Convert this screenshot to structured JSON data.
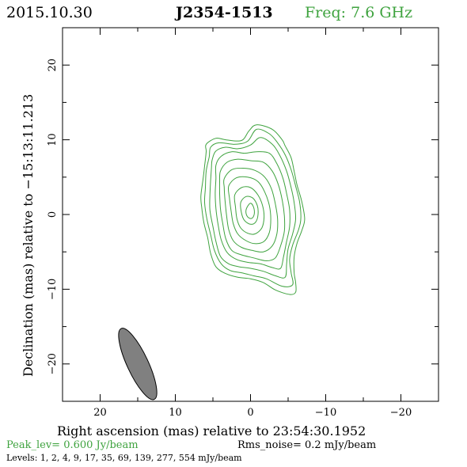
{
  "header": {
    "date": "2015.10.30",
    "source": "J2354-1513",
    "freq": "Freq: 7.6 GHz"
  },
  "colors": {
    "contour": "#3fa33f",
    "beam": "#808080",
    "frame": "#000000",
    "green_text": "#3fa33f"
  },
  "chart_data": {
    "type": "contour",
    "xlabel": "Right ascension (mas) relative to 23:54:30.1952",
    "ylabel": "Declination (mas) relative to −15:13:11.213",
    "xlim": [
      25,
      -25
    ],
    "ylim": [
      -25,
      25
    ],
    "xticks": [
      20,
      10,
      0,
      -10,
      -20
    ],
    "xtick_labels": [
      "20",
      "10",
      "0",
      "−10",
      "−20"
    ],
    "yticks": [
      20,
      10,
      0,
      -10,
      -20
    ],
    "ytick_labels": [
      "20",
      "10",
      "0",
      "−10",
      "−20"
    ],
    "peak_label": "Peak_lev=  0.600 Jy/beam",
    "rms_label": "Rms_noise=  0.2 mJy/beam",
    "levels_label": "Levels:   1,   2,   4,   9,  17,  35,  69, 139, 277, 554 mJy/beam",
    "levels_mJy": [
      1,
      2,
      4,
      9,
      17,
      35,
      69,
      139,
      277,
      554
    ],
    "beam": {
      "x": 15.0,
      "y": -20.0,
      "major_mas": 10.4,
      "minor_mas": 2.8,
      "pa_deg": -25
    },
    "contours": [
      [
        [
          5.9,
          8.4
        ],
        [
          5.9,
          9.4
        ],
        [
          4.6,
          10.2
        ],
        [
          3.3,
          10.0
        ],
        [
          1.2,
          9.9
        ],
        [
          0.2,
          11.2
        ],
        [
          -0.8,
          12.0
        ],
        [
          -2.9,
          11.4
        ],
        [
          -4.2,
          10.0
        ],
        [
          -4.6,
          9.2
        ],
        [
          -5.4,
          7.6
        ],
        [
          -5.8,
          5.8
        ],
        [
          -6.2,
          3.9
        ],
        [
          -6.8,
          1.8
        ],
        [
          -7.2,
          -0.6
        ],
        [
          -6.8,
          -2.2
        ],
        [
          -6.2,
          -3.8
        ],
        [
          -5.8,
          -5.7
        ],
        [
          -5.8,
          -7.8
        ],
        [
          -6.0,
          -9.1
        ],
        [
          -6.0,
          -10.4
        ],
        [
          -5.2,
          -10.7
        ],
        [
          -3.3,
          -10.1
        ],
        [
          -1.7,
          -9.1
        ],
        [
          0.0,
          -8.6
        ],
        [
          1.7,
          -8.4
        ],
        [
          3.3,
          -7.9
        ],
        [
          4.6,
          -7.0
        ],
        [
          5.3,
          -5.2
        ],
        [
          5.7,
          -3.1
        ],
        [
          6.2,
          -1.1
        ],
        [
          6.5,
          1.0
        ],
        [
          6.6,
          2.5
        ],
        [
          6.3,
          4.8
        ],
        [
          6.1,
          6.5
        ]
      ],
      [
        [
          5.5,
          7.7
        ],
        [
          5.3,
          9.0
        ],
        [
          4.2,
          9.6
        ],
        [
          2.1,
          9.4
        ],
        [
          0.4,
          9.8
        ],
        [
          -0.8,
          11.4
        ],
        [
          -2.5,
          10.8
        ],
        [
          -3.6,
          9.6
        ],
        [
          -4.6,
          8.0
        ],
        [
          -5.4,
          6.0
        ],
        [
          -6.0,
          3.8
        ],
        [
          -6.5,
          1.8
        ],
        [
          -6.7,
          -0.4
        ],
        [
          -6.4,
          -2.0
        ],
        [
          -5.6,
          -4.1
        ],
        [
          -5.2,
          -6.0
        ],
        [
          -5.4,
          -7.8
        ],
        [
          -5.6,
          -9.4
        ],
        [
          -4.2,
          -9.6
        ],
        [
          -2.1,
          -8.6
        ],
        [
          -0.4,
          -8.2
        ],
        [
          1.2,
          -7.8
        ],
        [
          2.7,
          -7.5
        ],
        [
          3.9,
          -6.6
        ],
        [
          4.8,
          -4.8
        ],
        [
          5.3,
          -2.7
        ],
        [
          5.8,
          -0.6
        ],
        [
          6.1,
          1.6
        ],
        [
          6.0,
          3.6
        ],
        [
          5.9,
          5.8
        ]
      ],
      [
        [
          5.1,
          7.3
        ],
        [
          4.6,
          8.5
        ],
        [
          3.3,
          9.0
        ],
        [
          1.7,
          8.8
        ],
        [
          0.0,
          9.3
        ],
        [
          -1.3,
          10.3
        ],
        [
          -2.9,
          9.4
        ],
        [
          -3.9,
          7.9
        ],
        [
          -4.8,
          5.8
        ],
        [
          -5.4,
          3.6
        ],
        [
          -5.8,
          1.6
        ],
        [
          -6.0,
          -0.6
        ],
        [
          -5.6,
          -2.6
        ],
        [
          -5.0,
          -4.6
        ],
        [
          -4.8,
          -6.6
        ],
        [
          -4.6,
          -8.4
        ],
        [
          -3.3,
          -8.2
        ],
        [
          -1.7,
          -7.6
        ],
        [
          0.0,
          -7.2
        ],
        [
          1.5,
          -7.0
        ],
        [
          2.9,
          -6.6
        ],
        [
          4.0,
          -5.6
        ],
        [
          4.6,
          -3.6
        ],
        [
          5.0,
          -1.6
        ],
        [
          5.4,
          0.6
        ],
        [
          5.4,
          2.6
        ],
        [
          5.3,
          4.6
        ],
        [
          5.2,
          6.2
        ]
      ],
      [
        [
          4.6,
          6.6
        ],
        [
          3.9,
          7.8
        ],
        [
          2.5,
          8.4
        ],
        [
          0.8,
          8.2
        ],
        [
          -0.8,
          8.4
        ],
        [
          -2.5,
          8.2
        ],
        [
          -3.5,
          6.8
        ],
        [
          -4.3,
          4.9
        ],
        [
          -4.8,
          2.8
        ],
        [
          -5.2,
          0.6
        ],
        [
          -5.2,
          -1.6
        ],
        [
          -4.8,
          -3.6
        ],
        [
          -4.4,
          -5.6
        ],
        [
          -4.0,
          -7.2
        ],
        [
          -2.9,
          -7.1
        ],
        [
          -1.3,
          -6.6
        ],
        [
          0.4,
          -6.4
        ],
        [
          1.9,
          -6.0
        ],
        [
          3.1,
          -5.1
        ],
        [
          3.9,
          -3.4
        ],
        [
          4.3,
          -1.4
        ],
        [
          4.6,
          0.8
        ],
        [
          4.7,
          2.8
        ],
        [
          4.6,
          4.8
        ]
      ],
      [
        [
          4.0,
          5.8
        ],
        [
          3.1,
          7.0
        ],
        [
          1.7,
          7.4
        ],
        [
          0.0,
          7.2
        ],
        [
          -1.7,
          7.0
        ],
        [
          -2.9,
          5.8
        ],
        [
          -3.7,
          4.0
        ],
        [
          -4.2,
          2.0
        ],
        [
          -4.5,
          -0.2
        ],
        [
          -4.5,
          -2.2
        ],
        [
          -4.0,
          -4.2
        ],
        [
          -3.3,
          -5.8
        ],
        [
          -2.1,
          -6.2
        ],
        [
          -0.4,
          -5.8
        ],
        [
          1.2,
          -5.4
        ],
        [
          2.5,
          -4.8
        ],
        [
          3.3,
          -3.2
        ],
        [
          3.7,
          -1.2
        ],
        [
          4.0,
          0.8
        ],
        [
          4.1,
          2.8
        ],
        [
          4.1,
          4.4
        ]
      ],
      [
        [
          3.5,
          4.8
        ],
        [
          2.5,
          6.0
        ],
        [
          1.0,
          6.2
        ],
        [
          -0.6,
          5.9
        ],
        [
          -1.9,
          5.0
        ],
        [
          -2.8,
          3.4
        ],
        [
          -3.3,
          1.4
        ],
        [
          -3.6,
          -0.6
        ],
        [
          -3.5,
          -2.6
        ],
        [
          -2.9,
          -4.2
        ],
        [
          -1.7,
          -5.0
        ],
        [
          -0.2,
          -4.8
        ],
        [
          1.2,
          -4.4
        ],
        [
          2.3,
          -3.5
        ],
        [
          2.9,
          -2.0
        ],
        [
          3.2,
          0.0
        ],
        [
          3.4,
          2.0
        ],
        [
          3.5,
          3.6
        ]
      ],
      [
        [
          2.9,
          3.8
        ],
        [
          1.9,
          4.9
        ],
        [
          0.4,
          5.0
        ],
        [
          -1.0,
          4.4
        ],
        [
          -1.9,
          3.0
        ],
        [
          -2.5,
          1.2
        ],
        [
          -2.7,
          -0.6
        ],
        [
          -2.5,
          -2.4
        ],
        [
          -1.8,
          -3.6
        ],
        [
          -0.6,
          -3.9
        ],
        [
          0.6,
          -3.5
        ],
        [
          1.7,
          -2.6
        ],
        [
          2.3,
          -1.2
        ],
        [
          2.6,
          0.6
        ],
        [
          2.8,
          2.2
        ]
      ],
      [
        [
          2.1,
          2.6
        ],
        [
          1.2,
          3.6
        ],
        [
          0.0,
          3.6
        ],
        [
          -1.0,
          2.6
        ],
        [
          -1.6,
          1.2
        ],
        [
          -1.8,
          -0.4
        ],
        [
          -1.5,
          -1.8
        ],
        [
          -0.6,
          -2.6
        ],
        [
          0.4,
          -2.5
        ],
        [
          1.3,
          -1.8
        ],
        [
          1.8,
          -0.6
        ],
        [
          2.0,
          1.0
        ]
      ],
      [
        [
          1.3,
          1.6
        ],
        [
          0.6,
          2.4
        ],
        [
          -0.3,
          2.2
        ],
        [
          -0.9,
          1.2
        ],
        [
          -1.0,
          0.0
        ],
        [
          -0.7,
          -1.0
        ],
        [
          0.0,
          -1.3
        ],
        [
          0.8,
          -0.8
        ],
        [
          1.2,
          0.2
        ]
      ],
      [
        [
          0.5,
          0.9
        ],
        [
          0.0,
          1.5
        ],
        [
          -0.4,
          1.0
        ],
        [
          -0.5,
          0.1
        ],
        [
          -0.2,
          -0.5
        ],
        [
          0.3,
          -0.4
        ],
        [
          0.6,
          0.2
        ]
      ]
    ]
  }
}
